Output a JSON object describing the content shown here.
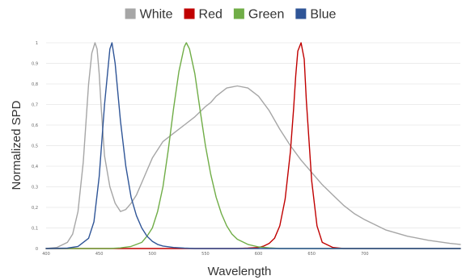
{
  "chart_data": {
    "type": "line",
    "xlabel": "Wavelength",
    "ylabel": "Normalized SPD",
    "xlim": [
      400,
      790
    ],
    "ylim": [
      0,
      1
    ],
    "x_ticks": [
      "400",
      "450",
      "500",
      "550",
      "600",
      "650",
      "700"
    ],
    "y_ticks": [
      "0",
      "0,1",
      "0,2",
      "0,3",
      "0,4",
      "0,5",
      "0,6",
      "0,7",
      "0,8",
      "0,9",
      "1"
    ],
    "grid": true,
    "legend_position": "top",
    "series": [
      {
        "name": "White",
        "color": "#a6a6a6",
        "x": [
          400,
          410,
          420,
          425,
          430,
          435,
          440,
          443,
          446,
          448,
          450,
          452,
          455,
          460,
          465,
          470,
          475,
          480,
          485,
          490,
          495,
          500,
          510,
          520,
          530,
          540,
          550,
          555,
          560,
          565,
          570,
          575,
          580,
          590,
          600,
          610,
          620,
          630,
          640,
          650,
          660,
          670,
          680,
          690,
          700,
          720,
          740,
          760,
          780,
          790
        ],
        "y": [
          0.0,
          0.005,
          0.03,
          0.07,
          0.18,
          0.42,
          0.8,
          0.95,
          1.0,
          0.97,
          0.85,
          0.67,
          0.45,
          0.3,
          0.22,
          0.18,
          0.19,
          0.22,
          0.26,
          0.32,
          0.38,
          0.44,
          0.52,
          0.56,
          0.6,
          0.64,
          0.69,
          0.71,
          0.74,
          0.76,
          0.78,
          0.785,
          0.79,
          0.78,
          0.74,
          0.67,
          0.58,
          0.5,
          0.43,
          0.37,
          0.31,
          0.26,
          0.21,
          0.17,
          0.14,
          0.09,
          0.06,
          0.04,
          0.025,
          0.02
        ]
      },
      {
        "name": "Red",
        "color": "#c00000",
        "x": [
          400,
          580,
          590,
          600,
          605,
          610,
          615,
          620,
          625,
          630,
          633,
          635,
          637,
          640,
          643,
          645,
          650,
          655,
          660,
          670,
          680,
          700,
          790
        ],
        "y": [
          0.0,
          0.0,
          0.002,
          0.005,
          0.012,
          0.025,
          0.05,
          0.11,
          0.24,
          0.47,
          0.68,
          0.84,
          0.96,
          1.0,
          0.92,
          0.72,
          0.33,
          0.11,
          0.03,
          0.005,
          0.0,
          0.0,
          0.0
        ]
      },
      {
        "name": "Green",
        "color": "#70ad47",
        "x": [
          400,
          460,
          470,
          480,
          490,
          495,
          500,
          505,
          510,
          515,
          520,
          525,
          530,
          532,
          535,
          540,
          545,
          550,
          555,
          560,
          565,
          570,
          575,
          580,
          590,
          600,
          610,
          620,
          640,
          790
        ],
        "y": [
          0.0,
          0.0,
          0.003,
          0.01,
          0.03,
          0.06,
          0.1,
          0.18,
          0.3,
          0.48,
          0.68,
          0.86,
          0.98,
          1.0,
          0.97,
          0.85,
          0.67,
          0.5,
          0.36,
          0.25,
          0.17,
          0.11,
          0.07,
          0.045,
          0.02,
          0.008,
          0.003,
          0.0,
          0.0,
          0.0
        ]
      },
      {
        "name": "Blue",
        "color": "#2f5597",
        "x": [
          400,
          420,
          430,
          440,
          445,
          450,
          455,
          460,
          462,
          465,
          470,
          475,
          480,
          485,
          490,
          495,
          500,
          505,
          510,
          520,
          530,
          540,
          560,
          600,
          790
        ],
        "y": [
          0.0,
          0.002,
          0.01,
          0.05,
          0.13,
          0.35,
          0.7,
          0.97,
          1.0,
          0.9,
          0.62,
          0.4,
          0.25,
          0.16,
          0.1,
          0.06,
          0.035,
          0.02,
          0.012,
          0.005,
          0.002,
          0.0,
          0.0,
          0.0,
          0.0
        ]
      }
    ]
  }
}
